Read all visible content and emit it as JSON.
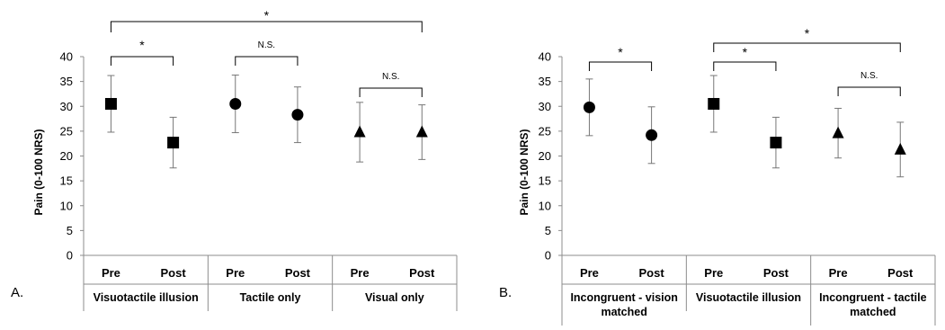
{
  "chart_data": [
    {
      "type": "scatter",
      "panel_label": "A.",
      "ylabel": "Pain (0-100 NRS)",
      "ylim": [
        0,
        40
      ],
      "yticks": [
        "0",
        "5",
        "10",
        "15",
        "20",
        "25",
        "30",
        "35",
        "40"
      ],
      "grid": false,
      "groups": [
        {
          "label": "Visuotactile illusion",
          "marker": "square",
          "points": [
            {
              "x": "Pre",
              "y": 30.5,
              "err": 5.7
            },
            {
              "x": "Post",
              "y": 22.7,
              "err": 5.1
            }
          ]
        },
        {
          "label": "Tactile only",
          "marker": "circle",
          "points": [
            {
              "x": "Pre",
              "y": 30.5,
              "err": 5.8
            },
            {
              "x": "Post",
              "y": 28.3,
              "err": 5.6
            }
          ]
        },
        {
          "label": "Visual only",
          "marker": "triangle",
          "points": [
            {
              "x": "Pre",
              "y": 24.8,
              "err": 6.0
            },
            {
              "x": "Post",
              "y": 24.8,
              "err": 5.5
            }
          ]
        }
      ],
      "annotations": [
        {
          "text": "*",
          "from": "Visuotactile illusion Pre",
          "to": "Visuotactile illusion Post"
        },
        {
          "text": "N.S.",
          "from": "Tactile only Pre",
          "to": "Tactile only Post"
        },
        {
          "text": "N.S.",
          "from": "Visual only Pre",
          "to": "Visual only Post"
        },
        {
          "text": "*",
          "from": "Visuotactile illusion Pre",
          "to": "Visual only Post"
        }
      ]
    },
    {
      "type": "scatter",
      "panel_label": "B.",
      "ylabel": "Pain (0-100 NRS)",
      "ylim": [
        0,
        40
      ],
      "yticks": [
        "0",
        "5",
        "10",
        "15",
        "20",
        "25",
        "30",
        "35",
        "40"
      ],
      "grid": false,
      "groups": [
        {
          "label": "Incongruent - vision matched",
          "label_lines": [
            "Incongruent - vision",
            "matched"
          ],
          "marker": "circle",
          "points": [
            {
              "x": "Pre",
              "y": 29.8,
              "err": 5.7
            },
            {
              "x": "Post",
              "y": 24.2,
              "err": 5.7
            }
          ]
        },
        {
          "label": "Visuotactile illusion",
          "label_lines": [
            "Visuotactile illusion"
          ],
          "marker": "square",
          "points": [
            {
              "x": "Pre",
              "y": 30.5,
              "err": 5.7
            },
            {
              "x": "Post",
              "y": 22.7,
              "err": 5.1
            }
          ]
        },
        {
          "label": "Incongruent - tactile matched",
          "label_lines": [
            "Incongruent - tactile",
            "matched"
          ],
          "marker": "triangle",
          "points": [
            {
              "x": "Pre",
              "y": 24.6,
              "err": 5.0
            },
            {
              "x": "Post",
              "y": 21.3,
              "err": 5.5
            }
          ]
        }
      ],
      "annotations": [
        {
          "text": "*",
          "from": "Incongruent - vision matched Pre",
          "to": "Incongruent - vision matched Post"
        },
        {
          "text": "*",
          "from": "Visuotactile illusion Pre",
          "to": "Visuotactile illusion Post"
        },
        {
          "text": "N.S.",
          "from": "Incongruent - tactile matched Pre",
          "to": "Incongruent - tactile matched Post"
        },
        {
          "text": "*",
          "from": "Visuotactile illusion Pre",
          "to": "Incongruent - tactile matched Post"
        }
      ]
    }
  ]
}
